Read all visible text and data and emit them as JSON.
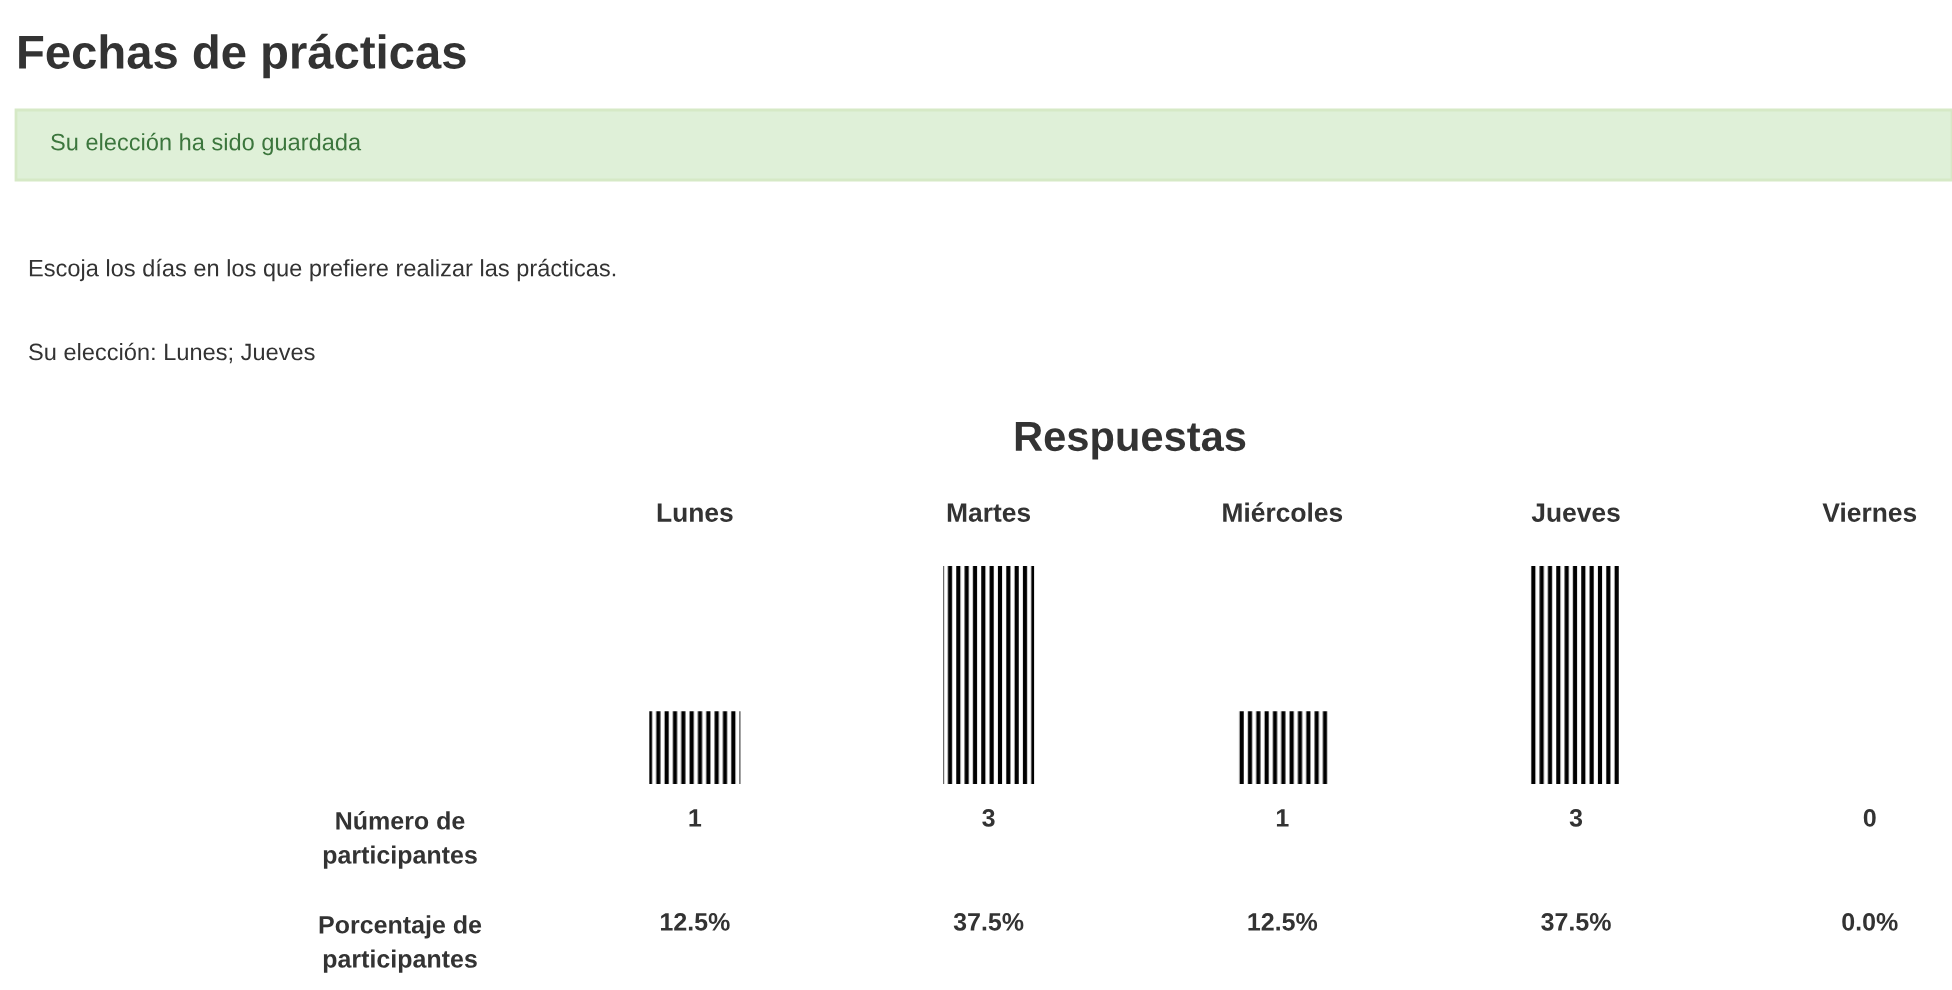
{
  "chart_data": {
    "type": "bar",
    "title": "Fechas de prácticas",
    "subtitle": "Respuestas",
    "categories": [
      "Lunes",
      "Martes",
      "Miércoles",
      "Jueves",
      "Viernes"
    ],
    "values": [
      1,
      3,
      1,
      3,
      0
    ],
    "color": "#000000",
    "value_labels": [
      "1",
      "3",
      "1",
      "3",
      "0"
    ],
    "annotations": [
      "Su elección ha sido guardada",
      "Escoja los días en los que prefiere realizar las prácticas.",
      "Su elección: Lunes; Jueves",
      "Número de\nparticipantes",
      "Porcentaje de\nparticipantes",
      "12.5%",
      "37.5%",
      "12.5%",
      "37.5%",
      "0.0%"
    ]
  }
}
